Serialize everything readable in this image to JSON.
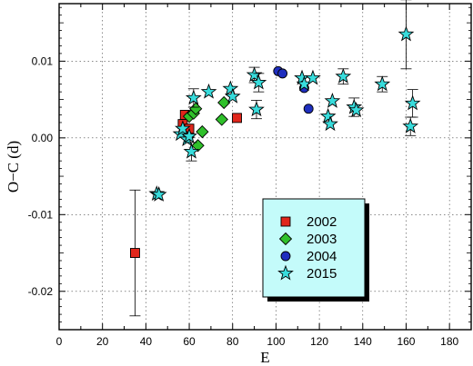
{
  "chart_data": {
    "type": "scatter",
    "title": "",
    "xlabel": "E",
    "ylabel": "O−C  (d)",
    "xlim": [
      0,
      190
    ],
    "ylim": [
      -0.025,
      0.0175
    ],
    "xticks": [
      0,
      20,
      40,
      60,
      80,
      100,
      120,
      140,
      160,
      180
    ],
    "yticks": [
      -0.02,
      -0.01,
      0.0,
      0.01
    ],
    "ytick_labels": [
      "-0.02",
      "-0.01",
      "0.00",
      "0.01"
    ],
    "grid": true,
    "legend_position": "bottom-right",
    "series": [
      {
        "name": "2002",
        "marker": "square",
        "color": "#e0261b",
        "points": [
          {
            "x": 35,
            "y": -0.015,
            "err": 0.0082
          },
          {
            "x": 57,
            "y": 0.0018,
            "err": 0.0
          },
          {
            "x": 58,
            "y": 0.003,
            "err": 0.0
          },
          {
            "x": 60,
            "y": 0.0012,
            "err": 0.0
          },
          {
            "x": 82,
            "y": 0.0026,
            "err": 0.0
          }
        ]
      },
      {
        "name": "2003",
        "marker": "diamond",
        "color": "#2fc02a",
        "points": [
          {
            "x": 60,
            "y": 0.0028,
            "err": 0.0
          },
          {
            "x": 62,
            "y": 0.0032,
            "err": 0.0
          },
          {
            "x": 63,
            "y": 0.0038,
            "err": 0.0
          },
          {
            "x": 64,
            "y": -0.001,
            "err": 0.0
          },
          {
            "x": 66,
            "y": 0.0008,
            "err": 0.0
          },
          {
            "x": 75,
            "y": 0.0024,
            "err": 0.0
          },
          {
            "x": 76,
            "y": 0.0046,
            "err": 0.0
          }
        ]
      },
      {
        "name": "2004",
        "marker": "circle",
        "color": "#1f2fbf",
        "points": [
          {
            "x": 101,
            "y": 0.0087,
            "err": 0.0
          },
          {
            "x": 103,
            "y": 0.0084,
            "err": 0.0
          },
          {
            "x": 113,
            "y": 0.0065,
            "err": 0.0
          },
          {
            "x": 115,
            "y": 0.0038,
            "err": 0.0
          }
        ]
      },
      {
        "name": "2015",
        "marker": "star",
        "color": "#38dcdc",
        "points": [
          {
            "x": 45,
            "y": -0.0073,
            "err": 0.0
          },
          {
            "x": 46,
            "y": -0.0074,
            "err": 0.0
          },
          {
            "x": 56,
            "y": 0.0005,
            "err": 0.0
          },
          {
            "x": 57,
            "y": 0.0012,
            "err": 0.0
          },
          {
            "x": 59,
            "y": -0.0002,
            "err": 0.0
          },
          {
            "x": 60,
            "y": 0.0002,
            "err": 0.0
          },
          {
            "x": 61,
            "y": -0.0018,
            "err": 0.0012
          },
          {
            "x": 62,
            "y": 0.0052,
            "err": 0.0012
          },
          {
            "x": 69,
            "y": 0.006,
            "err": 0.0
          },
          {
            "x": 79,
            "y": 0.0064,
            "err": 0.0
          },
          {
            "x": 80,
            "y": 0.0054,
            "err": 0.0
          },
          {
            "x": 90,
            "y": 0.0082,
            "err": 0.001
          },
          {
            "x": 91,
            "y": 0.0037,
            "err": 0.0012
          },
          {
            "x": 92,
            "y": 0.0072,
            "err": 0.0012
          },
          {
            "x": 112,
            "y": 0.0078,
            "err": 0.0
          },
          {
            "x": 113,
            "y": 0.007,
            "err": 0.0
          },
          {
            "x": 117,
            "y": 0.0078,
            "err": 0.0
          },
          {
            "x": 124,
            "y": 0.0028,
            "err": 0.0
          },
          {
            "x": 125,
            "y": 0.0018,
            "err": 0.0
          },
          {
            "x": 126,
            "y": 0.0048,
            "err": 0.0
          },
          {
            "x": 131,
            "y": 0.008,
            "err": 0.001
          },
          {
            "x": 136,
            "y": 0.004,
            "err": 0.0012
          },
          {
            "x": 137,
            "y": 0.0036,
            "err": 0.0
          },
          {
            "x": 149,
            "y": 0.007,
            "err": 0.001
          },
          {
            "x": 160,
            "y": 0.0135,
            "err": 0.0045
          },
          {
            "x": 162,
            "y": 0.0015,
            "err": 0.0012
          },
          {
            "x": 163,
            "y": 0.0045,
            "err": 0.0018
          }
        ]
      }
    ]
  }
}
